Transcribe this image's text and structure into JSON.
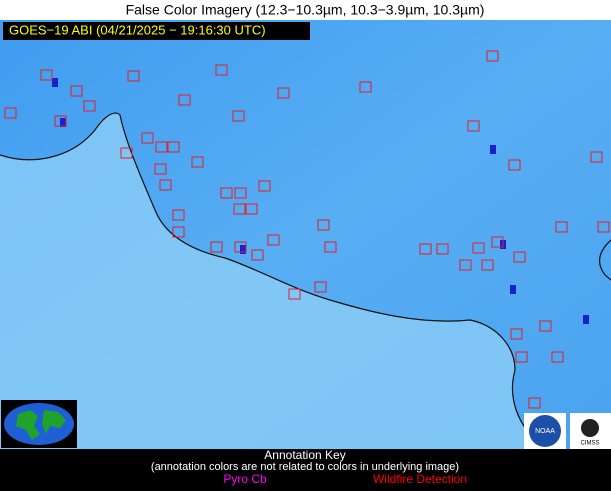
{
  "header": {
    "title": "False Color Imagery (12.3−10.3µm, 10.3−3.9µm, 10.3µm)",
    "timestamp": "GOES−19 ABI (04/21/2025 − 19:16:30 UTC)"
  },
  "key": {
    "title": "Annotation Key",
    "note": "(annotation colors are not related to colors in underlying image)",
    "items": [
      "Pyro Cb",
      "Wildfire Detection"
    ]
  },
  "logos": [
    "NOAA",
    "CIMSS"
  ]
}
